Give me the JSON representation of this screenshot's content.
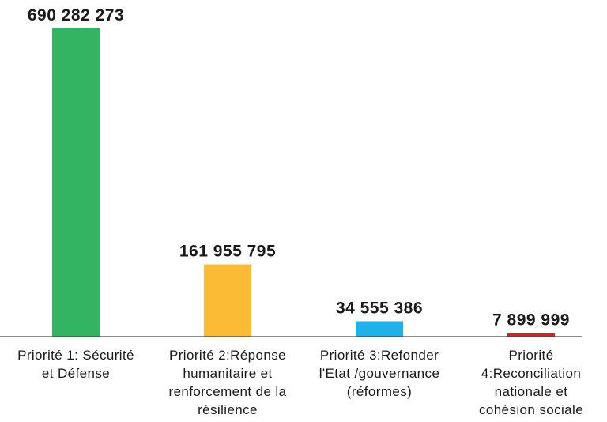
{
  "chart_data": {
    "type": "bar",
    "title": "",
    "xlabel": "",
    "ylabel": "",
    "ylim": [
      0,
      690282273
    ],
    "grid": false,
    "categories": [
      [
        "Priorité 1: Sécurité",
        "et Défense"
      ],
      [
        "Priorité 2:Réponse",
        "humanitaire et",
        "renforcement de la",
        "résilience"
      ],
      [
        "Priorité 3:Refonder",
        "l'Etat /gouvernance",
        "(réformes)"
      ],
      [
        "Priorité",
        "4:Reconciliation",
        "nationale et",
        "cohésion sociale"
      ]
    ],
    "values": [
      690282273,
      161955795,
      34555386,
      7899999
    ],
    "value_labels": [
      "690 282 273",
      "161 955 795",
      "34 555 386",
      "7 899 999"
    ],
    "colors": [
      "#33b463",
      "#fbbb34",
      "#1fb1ea",
      "#d2232a"
    ]
  }
}
